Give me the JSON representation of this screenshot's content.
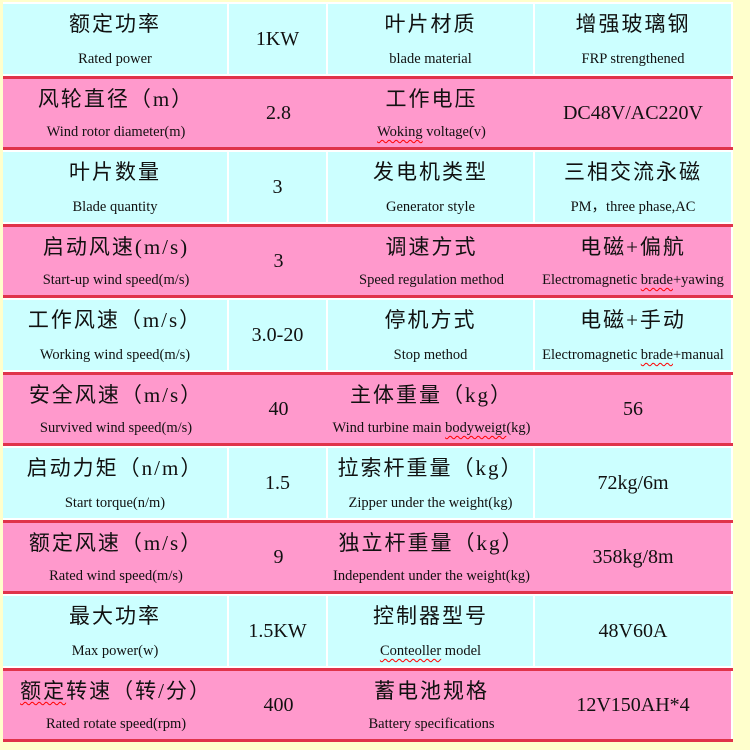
{
  "colors": {
    "page_background": "#ffffcc",
    "row_cyan": "#ccffff",
    "row_pink": "#ff99cc",
    "red_divider": "#e0334a",
    "white_divider": "#ffffff",
    "text": "#111111",
    "spellcheck_squiggle": "#ff0000"
  },
  "table": {
    "rows": [
      {
        "c1": {
          "zh": "额定功率",
          "en": "Rated power"
        },
        "c2": "1KW",
        "c3": {
          "zh": "叶片材质",
          "en": "blade material"
        },
        "c4": {
          "zh": "增强玻璃钢",
          "en": "FRP strengthened"
        }
      },
      {
        "c1": {
          "zh": "风轮直径（m）",
          "en": "Wind rotor diameter(m)"
        },
        "c2": "2.8",
        "c3": {
          "zh": "工作电压",
          "en": "Woking voltage(v)",
          "squiggle": "Woking"
        },
        "c4": "DC48V/AC220V"
      },
      {
        "c1": {
          "zh": "叶片数量",
          "en": "Blade quantity"
        },
        "c2": "3",
        "c3": {
          "zh": "发电机类型",
          "en": "Generator style"
        },
        "c4": {
          "zh": "三相交流永磁",
          "en": "PM，three phase,AC"
        }
      },
      {
        "c1": {
          "zh": "启动风速(m/s)",
          "en": "Start-up wind speed(m/s)"
        },
        "c2": "3",
        "c3": {
          "zh": "调速方式",
          "en": "Speed regulation method"
        },
        "c4": {
          "zh": "电磁+偏航",
          "en": "Electromagnetic brade+yawing",
          "squiggle": "brade"
        }
      },
      {
        "c1": {
          "zh": "工作风速（m/s）",
          "en": "Working wind speed(m/s)"
        },
        "c2": "3.0-20",
        "c3": {
          "zh": "停机方式",
          "en": "Stop method"
        },
        "c4": {
          "zh": "电磁+手动",
          "en": "Electromagnetic brade+manual",
          "squiggle": "brade"
        }
      },
      {
        "c1": {
          "zh": "安全风速（m/s）",
          "en": "Survived wind speed(m/s)"
        },
        "c2": "40",
        "c3": {
          "zh": "主体重量（kg）",
          "en": "Wind turbine main bodyweigt(kg)",
          "squiggle": "bodyweigt"
        },
        "c4": "56"
      },
      {
        "c1": {
          "zh": "启动力矩（n/m）",
          "en": "Start torque(n/m)"
        },
        "c2": "1.5",
        "c3": {
          "zh": "拉索杆重量（kg）",
          "en": "Zipper under the weight(kg)"
        },
        "c4": "72kg/6m"
      },
      {
        "c1": {
          "zh": "额定风速（m/s）",
          "en": "Rated wind speed(m/s)"
        },
        "c2": "9",
        "c3": {
          "zh": "独立杆重量（kg）",
          "en": "Independent under the weight(kg)"
        },
        "c4": "358kg/8m"
      },
      {
        "c1": {
          "zh": "最大功率",
          "en": "Max power(w)"
        },
        "c2": "1.5KW",
        "c3": {
          "zh": "控制器型号",
          "en": "Conteoller model",
          "squiggle": "Conteoller"
        },
        "c4": "48V60A"
      },
      {
        "c1": {
          "zh": "额定转速（转/分）",
          "en": "Rated rotate speed(rpm)",
          "zh_squiggle": true
        },
        "c2": "400",
        "c3": {
          "zh": "蓄电池规格",
          "en": "Battery specifications"
        },
        "c4": "12V150AH*4"
      }
    ]
  }
}
